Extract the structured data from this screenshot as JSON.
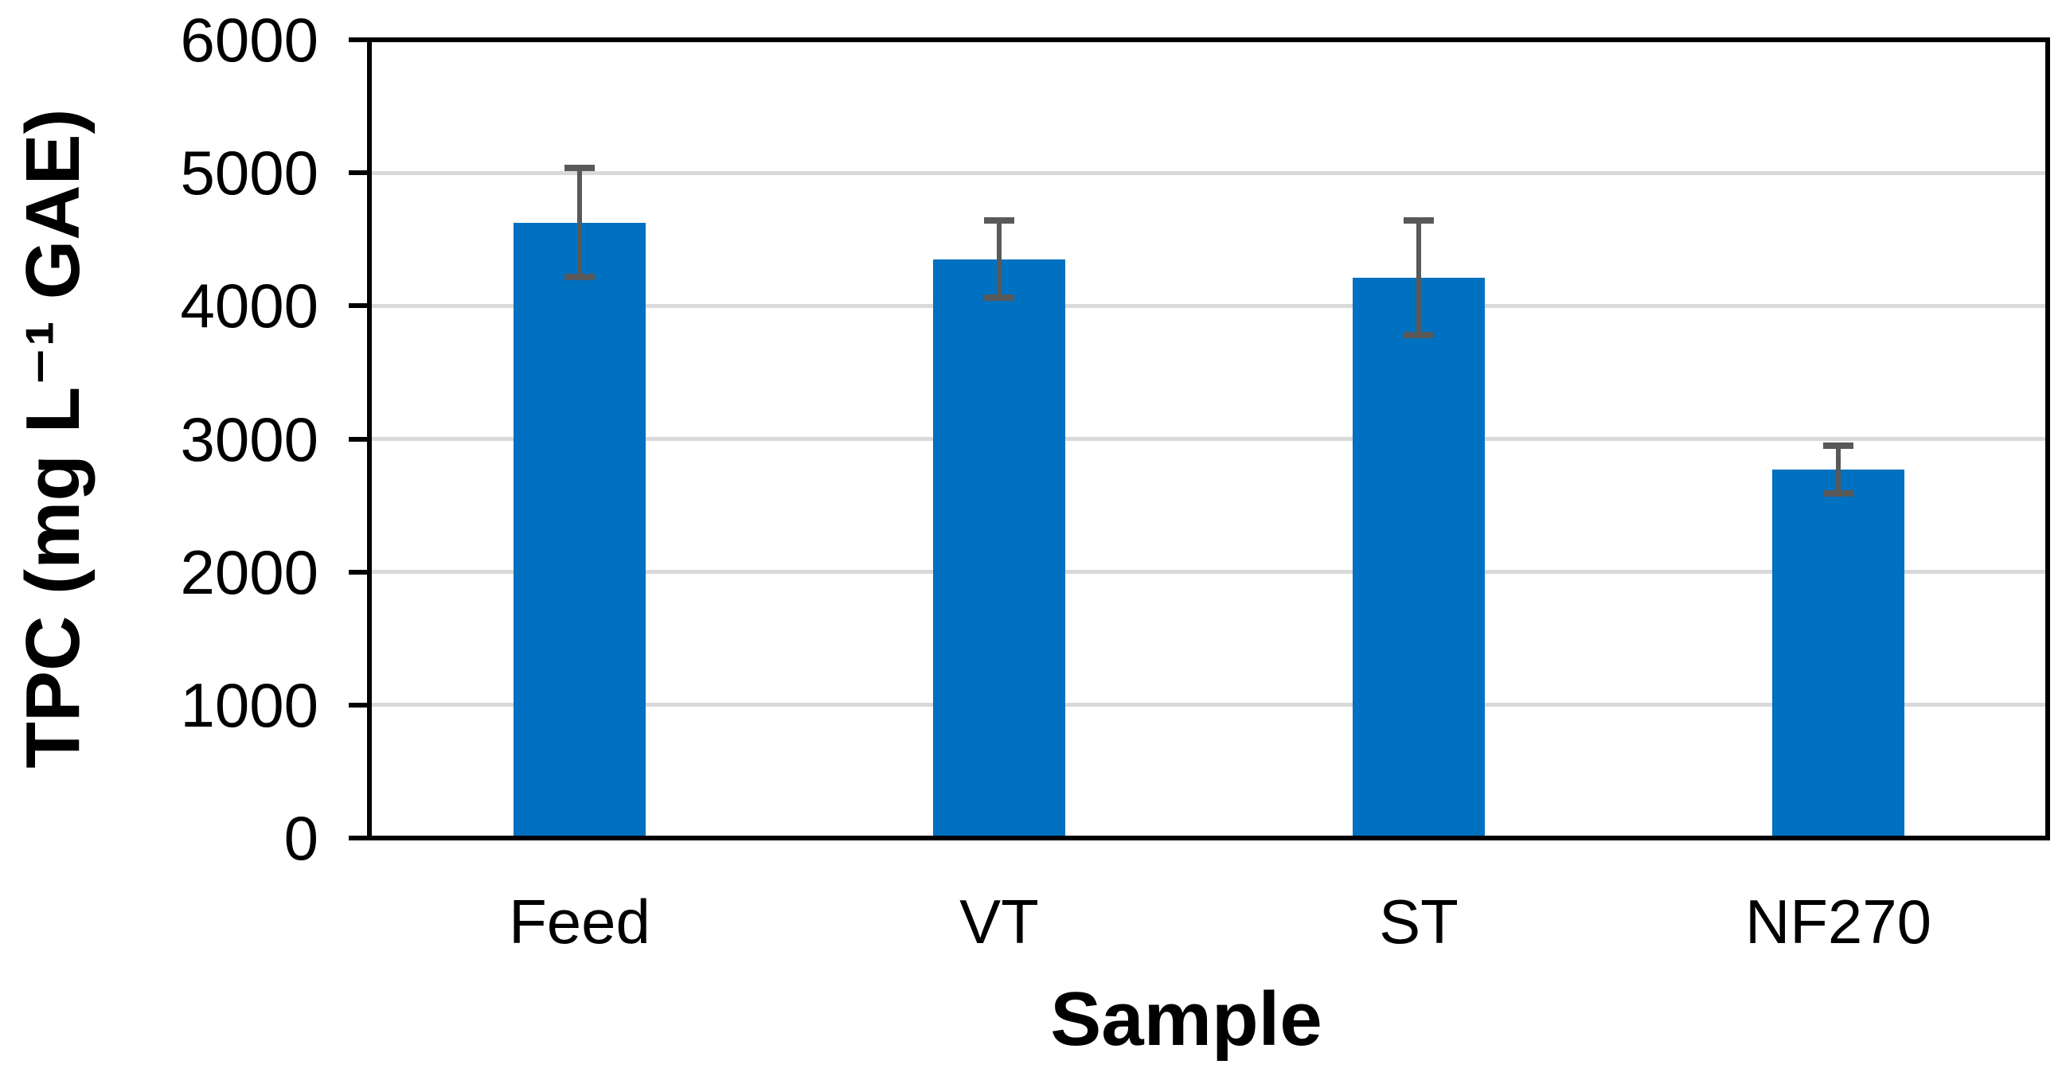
{
  "chart_data": {
    "type": "bar",
    "title": "",
    "xlabel": "Sample",
    "ylabel": "TPC (mg L⁻¹ GAE)",
    "categories": [
      "Feed",
      "VT",
      "ST",
      "NF270"
    ],
    "values": [
      4625,
      4350,
      4210,
      2770
    ],
    "error_bars": [
      410,
      290,
      430,
      180
    ],
    "ylim": [
      0,
      6000
    ],
    "yticks": [
      0,
      1000,
      2000,
      3000,
      4000,
      5000,
      6000
    ],
    "grid": "horizontal-major",
    "legend": "none",
    "colors": {
      "bar": "#0070C0",
      "error_bar": "#595959",
      "gridline": "#D9D9D9",
      "axis": "#000000",
      "text": "#000000",
      "background": "#FFFFFF"
    }
  }
}
